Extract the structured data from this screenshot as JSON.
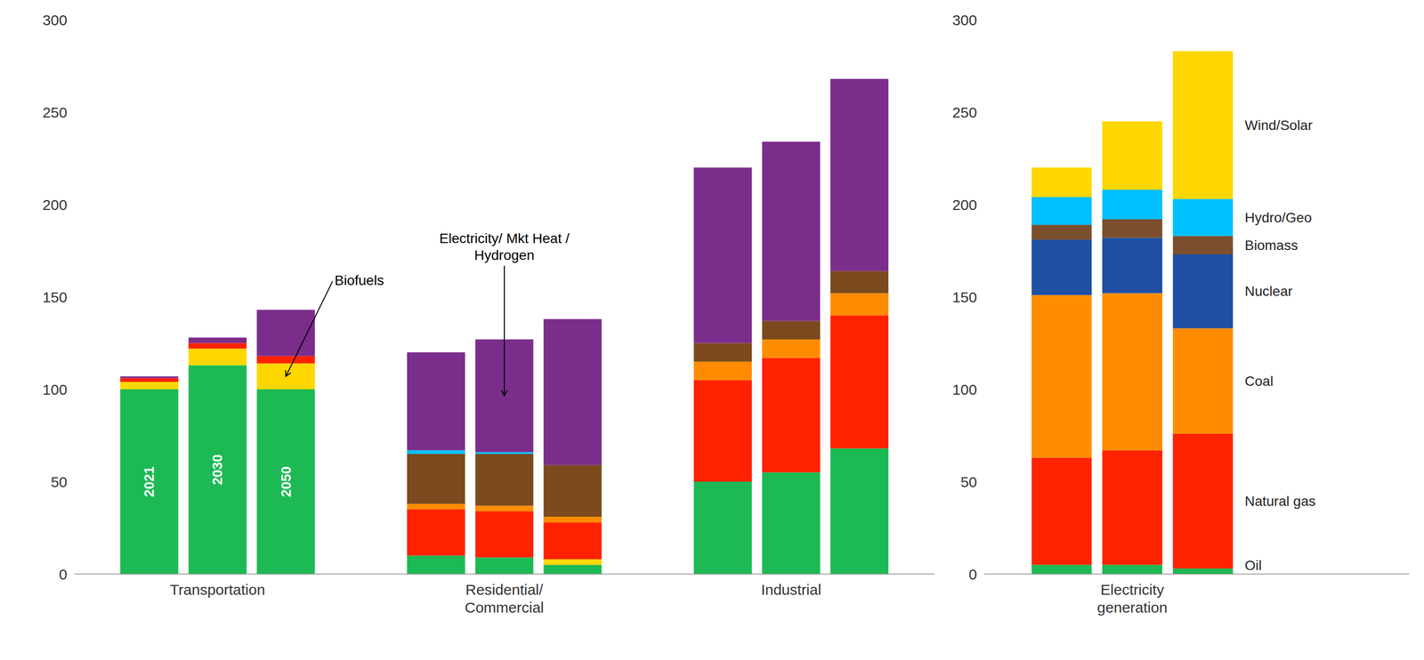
{
  "chart_data": [
    {
      "type": "bar",
      "stacked": true,
      "grid": false,
      "categories": [
        "2021",
        "2030",
        "2050",
        null,
        null,
        null,
        null,
        null,
        null
      ],
      "group_labels": [
        "Transportation",
        "Residential/\nCommercial",
        "Industrial"
      ],
      "ylim": [
        0,
        300
      ],
      "yticks": [
        0,
        50,
        100,
        150,
        200,
        250,
        300
      ],
      "series": [
        {
          "color": "#1DB954",
          "values": [
            100,
            113,
            100,
            10,
            9,
            5,
            50,
            55,
            68
          ]
        },
        {
          "color": "#FFD700",
          "values": [
            4,
            9,
            14,
            0,
            0,
            3,
            0,
            0,
            0
          ],
          "annotation": "Biofuels"
        },
        {
          "color": "#FF2200",
          "values": [
            2,
            3,
            4,
            25,
            25,
            20,
            55,
            62,
            72
          ]
        },
        {
          "color": "#FF8C00",
          "values": [
            0,
            0,
            0,
            3,
            3,
            3,
            10,
            10,
            12
          ]
        },
        {
          "color": "#7B4A1E",
          "values": [
            0,
            0,
            0,
            27,
            28,
            28,
            10,
            10,
            12
          ]
        },
        {
          "color": "#00BFFF",
          "values": [
            0,
            0,
            0,
            2,
            1,
            0,
            0,
            0,
            0
          ]
        },
        {
          "color": "#7B2D8B",
          "values": [
            1,
            3,
            25,
            53,
            61,
            79,
            95,
            97,
            104
          ],
          "annotation": "Electricity/ Mkt Heat /\nHydrogen"
        }
      ]
    },
    {
      "type": "bar",
      "stacked": true,
      "grid": false,
      "categories": [
        null,
        null,
        null
      ],
      "group_labels": [
        "Electricity\ngeneration"
      ],
      "ylim": [
        0,
        300
      ],
      "yticks": [
        0,
        50,
        100,
        150,
        200,
        250,
        300
      ],
      "series": [
        {
          "name": "Oil",
          "color": "#1DB954",
          "values": [
            5,
            5,
            3
          ]
        },
        {
          "name": "Natural gas",
          "color": "#FF2200",
          "values": [
            58,
            62,
            73
          ]
        },
        {
          "name": "Coal",
          "color": "#FF8C00",
          "values": [
            88,
            85,
            57
          ]
        },
        {
          "name": "Nuclear",
          "color": "#1F4FA3",
          "values": [
            30,
            30,
            40
          ]
        },
        {
          "name": "Biomass",
          "color": "#7B4F2E",
          "values": [
            8,
            10,
            10
          ]
        },
        {
          "name": "Hydro/Geo",
          "color": "#00BFFF",
          "values": [
            15,
            16,
            20
          ]
        },
        {
          "name": "Wind/Solar",
          "color": "#FFD700",
          "values": [
            16,
            37,
            80
          ]
        }
      ]
    }
  ]
}
